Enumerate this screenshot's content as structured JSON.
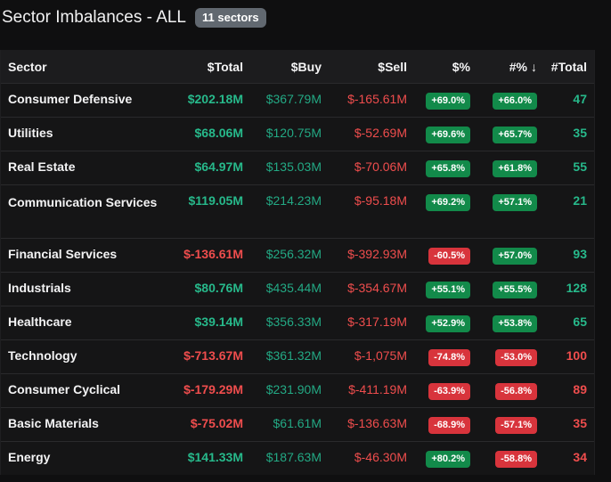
{
  "header": {
    "title": "Sector Imbalances - ALL",
    "badge": "11 sectors"
  },
  "columns": {
    "sector": "Sector",
    "total": "$Total",
    "buy": "$Buy",
    "sell": "$Sell",
    "pct": "$%",
    "npct": "#%",
    "sort_arrow": "↓",
    "count": "#Total"
  },
  "colors": {
    "background": "#0f0f10",
    "positive": "#27b98b",
    "negative": "#ef4d4d",
    "badge_positive_bg": "#128a4a",
    "badge_negative_bg": "#d8343c"
  },
  "rows": [
    {
      "sector": "Consumer Defensive",
      "total": "$202.18M",
      "total_sign": "pos",
      "buy": "$367.79M",
      "sell": "$-165.61M",
      "pct": "+69.0%",
      "pct_sign": "pos",
      "npct": "+66.0%",
      "npct_sign": "pos",
      "count": "47",
      "count_sign": "pos"
    },
    {
      "sector": "Utilities",
      "total": "$68.06M",
      "total_sign": "pos",
      "buy": "$120.75M",
      "sell": "$-52.69M",
      "pct": "+69.6%",
      "pct_sign": "pos",
      "npct": "+65.7%",
      "npct_sign": "pos",
      "count": "35",
      "count_sign": "pos"
    },
    {
      "sector": "Real Estate",
      "total": "$64.97M",
      "total_sign": "pos",
      "buy": "$135.03M",
      "sell": "$-70.06M",
      "pct": "+65.8%",
      "pct_sign": "pos",
      "npct": "+61.8%",
      "npct_sign": "pos",
      "count": "55",
      "count_sign": "pos"
    },
    {
      "sector": "Communication Services",
      "total": "$119.05M",
      "total_sign": "pos",
      "buy": "$214.23M",
      "sell": "$-95.18M",
      "pct": "+69.2%",
      "pct_sign": "pos",
      "npct": "+57.1%",
      "npct_sign": "pos",
      "count": "21",
      "count_sign": "pos",
      "tall": true
    },
    {
      "sector": "Financial Services",
      "total": "$-136.61M",
      "total_sign": "neg",
      "buy": "$256.32M",
      "sell": "$-392.93M",
      "pct": "-60.5%",
      "pct_sign": "neg",
      "npct": "+57.0%",
      "npct_sign": "pos",
      "count": "93",
      "count_sign": "pos"
    },
    {
      "sector": "Industrials",
      "total": "$80.76M",
      "total_sign": "pos",
      "buy": "$435.44M",
      "sell": "$-354.67M",
      "pct": "+55.1%",
      "pct_sign": "pos",
      "npct": "+55.5%",
      "npct_sign": "pos",
      "count": "128",
      "count_sign": "pos"
    },
    {
      "sector": "Healthcare",
      "total": "$39.14M",
      "total_sign": "pos",
      "buy": "$356.33M",
      "sell": "$-317.19M",
      "pct": "+52.9%",
      "pct_sign": "pos",
      "npct": "+53.8%",
      "npct_sign": "pos",
      "count": "65",
      "count_sign": "pos"
    },
    {
      "sector": "Technology",
      "total": "$-713.67M",
      "total_sign": "neg",
      "buy": "$361.32M",
      "sell": "$-1,075M",
      "pct": "-74.8%",
      "pct_sign": "neg",
      "npct": "-53.0%",
      "npct_sign": "neg",
      "count": "100",
      "count_sign": "neg"
    },
    {
      "sector": "Consumer Cyclical",
      "total": "$-179.29M",
      "total_sign": "neg",
      "buy": "$231.90M",
      "sell": "$-411.19M",
      "pct": "-63.9%",
      "pct_sign": "neg",
      "npct": "-56.8%",
      "npct_sign": "neg",
      "count": "89",
      "count_sign": "neg"
    },
    {
      "sector": "Basic Materials",
      "total": "$-75.02M",
      "total_sign": "neg",
      "buy": "$61.61M",
      "sell": "$-136.63M",
      "pct": "-68.9%",
      "pct_sign": "neg",
      "npct": "-57.1%",
      "npct_sign": "neg",
      "count": "35",
      "count_sign": "neg"
    },
    {
      "sector": "Energy",
      "total": "$141.33M",
      "total_sign": "pos",
      "buy": "$187.63M",
      "sell": "$-46.30M",
      "pct": "+80.2%",
      "pct_sign": "pos",
      "npct": "-58.8%",
      "npct_sign": "neg",
      "count": "34",
      "count_sign": "neg"
    }
  ]
}
